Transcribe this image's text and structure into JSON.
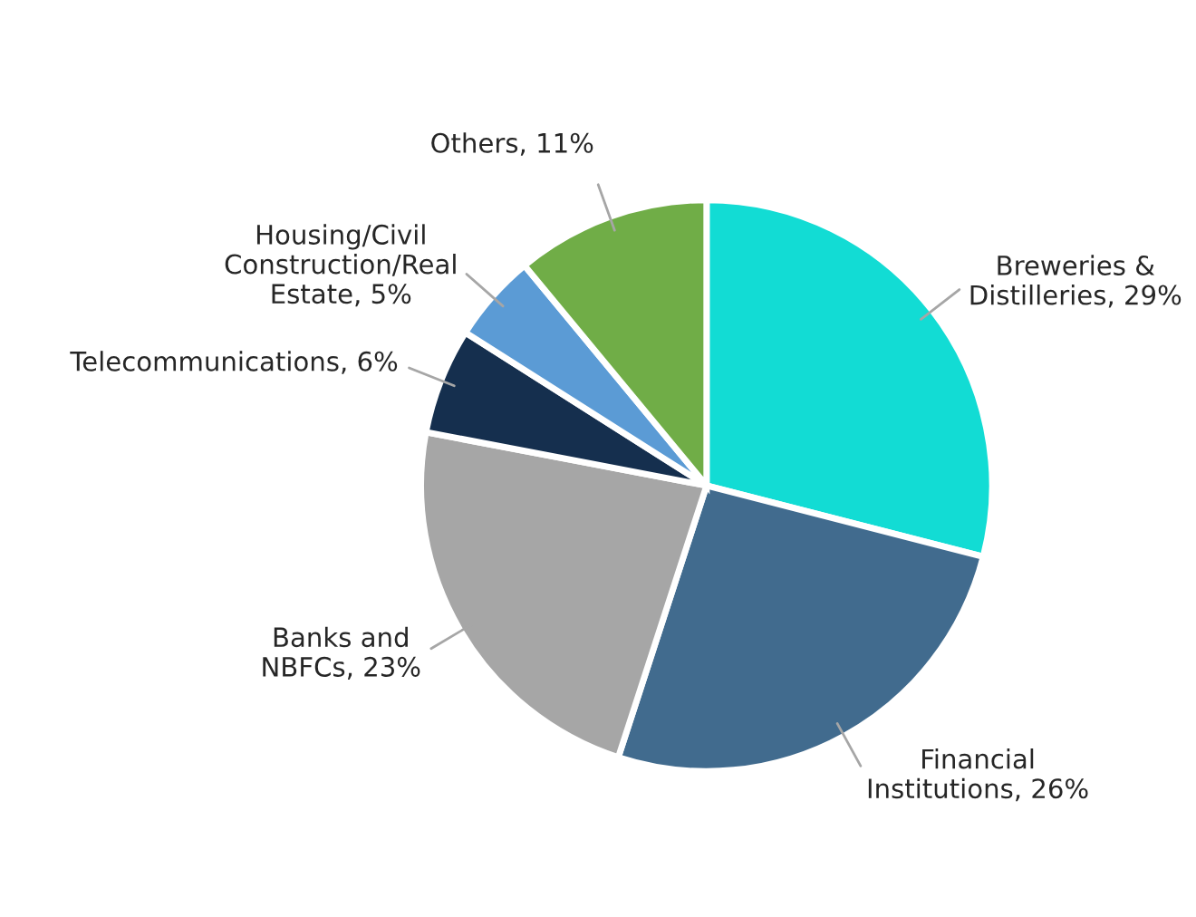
{
  "chart_data": {
    "type": "pie",
    "categories": [
      "Breweries &\nDistilleries",
      "Financial\nInstitutions",
      "Banks and\nNBFCs",
      "Telecommunications",
      "Housing/Civil\nConstruction/Real\nEstate",
      "Others"
    ],
    "values": [
      29,
      26,
      23,
      6,
      5,
      11
    ],
    "value_labels": [
      "29%",
      "26%",
      "23%",
      "6%",
      "5%",
      "11%"
    ],
    "colors": [
      "#12dcd4",
      "#416b8e",
      "#a6a6a6",
      "#152f4e",
      "#5b9bd5",
      "#70ad47"
    ],
    "legend": false
  }
}
